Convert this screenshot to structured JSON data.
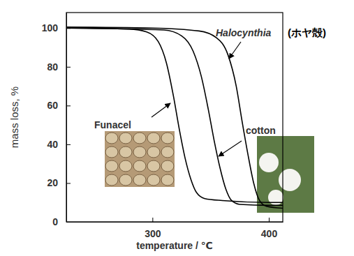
{
  "chart_data": {
    "type": "line",
    "x_label": "temperature / ℃",
    "y_label": "mass loss, %",
    "xlim": [
      226,
      412
    ],
    "ylim": [
      0,
      108
    ],
    "xticks": [
      300,
      400
    ],
    "yticks": [
      0,
      20,
      40,
      60,
      80,
      100
    ],
    "grid": false,
    "series": [
      {
        "name": "Funacel",
        "color": "#000000",
        "x": [
          226,
          280,
          295,
          305,
          312,
          318,
          323,
          328,
          333,
          338,
          345,
          360,
          400,
          412
        ],
        "values": [
          100,
          99.5,
          98,
          93,
          82,
          65,
          48,
          33,
          22,
          15,
          12,
          11,
          10,
          10
        ]
      },
      {
        "name": "cotton",
        "color": "#000000",
        "x": [
          226,
          310,
          325,
          335,
          342,
          348,
          353,
          358,
          363,
          368,
          375,
          400,
          412
        ],
        "values": [
          100,
          99,
          96,
          88,
          75,
          58,
          42,
          28,
          17,
          11,
          9,
          8.5,
          8.5
        ]
      },
      {
        "name": "Halocynthia",
        "color": "#000000",
        "x": [
          226,
          300,
          340,
          355,
          365,
          372,
          377,
          382,
          387,
          392,
          398,
          412
        ],
        "values": [
          100.5,
          100,
          98.5,
          95,
          86,
          70,
          52,
          35,
          20,
          11,
          8,
          7
        ]
      }
    ],
    "annotations": [
      {
        "text": "(ホヤ殻)"
      }
    ]
  }
}
